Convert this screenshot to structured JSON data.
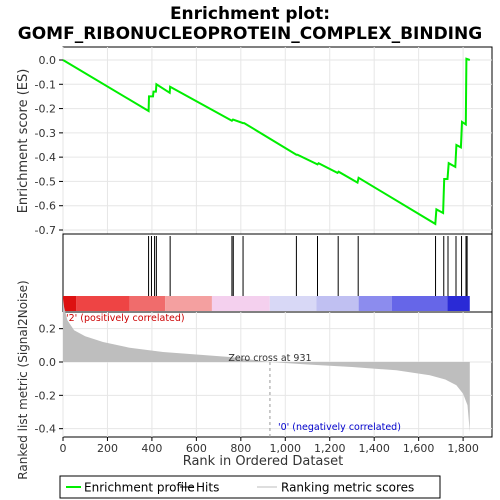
{
  "chart_data": {
    "type": "line",
    "title_line1": "Enrichment plot:",
    "title_line2": "GOMF_RIBONUCLEOPROTEIN_COMPLEX_BINDING",
    "es_panel": {
      "ylabel": "Enrichment score (ES)",
      "ylim": [
        -0.7,
        0.0
      ],
      "yticks": [
        0.0,
        -0.1,
        -0.2,
        -0.3,
        -0.4,
        -0.5,
        -0.6,
        -0.7
      ],
      "ytick_labels": [
        "0.0",
        "-0.1",
        "-0.2",
        "-0.3",
        "-0.4",
        "-0.5",
        "-0.6",
        "-0.7"
      ],
      "color": "#00ee00",
      "points": [
        [
          0,
          0.0
        ],
        [
          385,
          -0.21
        ],
        [
          387,
          -0.15
        ],
        [
          405,
          -0.15
        ],
        [
          407,
          -0.13
        ],
        [
          418,
          -0.13
        ],
        [
          420,
          -0.1
        ],
        [
          480,
          -0.135
        ],
        [
          482,
          -0.11
        ],
        [
          760,
          -0.25
        ],
        [
          765,
          -0.245
        ],
        [
          810,
          -0.26
        ],
        [
          815,
          -0.26
        ],
        [
          1050,
          -0.39
        ],
        [
          1055,
          -0.39
        ],
        [
          1145,
          -0.43
        ],
        [
          1150,
          -0.425
        ],
        [
          1235,
          -0.465
        ],
        [
          1240,
          -0.46
        ],
        [
          1325,
          -0.505
        ],
        [
          1330,
          -0.485
        ],
        [
          1675,
          -0.675
        ],
        [
          1680,
          -0.615
        ],
        [
          1710,
          -0.63
        ],
        [
          1715,
          -0.49
        ],
        [
          1730,
          -0.49
        ],
        [
          1735,
          -0.425
        ],
        [
          1765,
          -0.44
        ],
        [
          1770,
          -0.35
        ],
        [
          1790,
          -0.36
        ],
        [
          1795,
          -0.255
        ],
        [
          1812,
          -0.265
        ],
        [
          1815,
          0.005
        ],
        [
          1830,
          0.0
        ]
      ]
    },
    "hits": [
      385,
      398,
      412,
      420,
      482,
      760,
      766,
      810,
      1050,
      1145,
      1238,
      1328,
      1676,
      1713,
      1732,
      1768,
      1793,
      1813,
      1818
    ],
    "ranking_panel": {
      "ylabel": "Ranked list metric (Signal2Noise)",
      "ylim": [
        -0.45,
        0.3
      ],
      "yticks": [
        0.2,
        0.0,
        -0.2,
        -0.4
      ],
      "ytick_labels": [
        "0.2",
        "0.0",
        "-0.2",
        "-0.4"
      ],
      "fill_color": "#bebebe",
      "profile": [
        [
          0,
          0.38
        ],
        [
          5,
          0.33
        ],
        [
          20,
          0.25
        ],
        [
          50,
          0.19
        ],
        [
          100,
          0.155
        ],
        [
          180,
          0.12
        ],
        [
          300,
          0.085
        ],
        [
          450,
          0.06
        ],
        [
          600,
          0.045
        ],
        [
          750,
          0.03
        ],
        [
          931,
          0.0
        ],
        [
          1100,
          -0.015
        ],
        [
          1300,
          -0.03
        ],
        [
          1500,
          -0.05
        ],
        [
          1650,
          -0.08
        ],
        [
          1720,
          -0.105
        ],
        [
          1770,
          -0.14
        ],
        [
          1800,
          -0.19
        ],
        [
          1820,
          -0.26
        ],
        [
          1830,
          -0.42
        ]
      ],
      "zero_cross_label": "Zero cross at 931",
      "zero_cross_x": 931,
      "pos_label": "'2' (positively correlated)",
      "neg_label": "'0' (negatively correlated)",
      "pos_color": "#cc0000",
      "neg_color": "#0000cc"
    },
    "color_bar": [
      {
        "x0": 0,
        "x1": 60,
        "color": "#dd1111"
      },
      {
        "x0": 60,
        "x1": 300,
        "color": "#ee4444"
      },
      {
        "x0": 300,
        "x1": 460,
        "color": "#f06c6c"
      },
      {
        "x0": 460,
        "x1": 670,
        "color": "#f4a0a0"
      },
      {
        "x0": 670,
        "x1": 930,
        "color": "#f4d0ee"
      },
      {
        "x0": 930,
        "x1": 1140,
        "color": "#d8d8f6"
      },
      {
        "x0": 1140,
        "x1": 1330,
        "color": "#c0c0f2"
      },
      {
        "x0": 1330,
        "x1": 1480,
        "color": "#8c8cee"
      },
      {
        "x0": 1480,
        "x1": 1730,
        "color": "#6666e8"
      },
      {
        "x0": 1730,
        "x1": 1830,
        "color": "#2a2ad6"
      }
    ],
    "xlabel": "Rank in Ordered Dataset",
    "xlim": [
      0,
      1930
    ],
    "xticks": [
      0,
      200,
      400,
      600,
      800,
      1000,
      1200,
      1400,
      1600,
      1800
    ],
    "xtick_labels": [
      "0",
      "200",
      "400",
      "600",
      "800",
      "1,000",
      "1,200",
      "1,400",
      "1,600",
      "1,800"
    ],
    "legend": [
      {
        "label": "Enrichment profile",
        "color": "#00ee00"
      },
      {
        "label": "Hits",
        "color": "#000000"
      },
      {
        "label": "Ranking metric scores",
        "color": "#bebebe"
      }
    ]
  }
}
